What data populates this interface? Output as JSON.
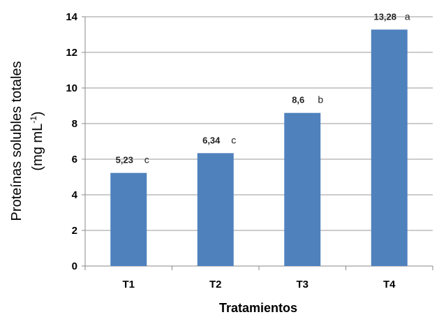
{
  "chart_data": {
    "type": "bar",
    "categories": [
      "T1",
      "T2",
      "T3",
      "T4"
    ],
    "values": [
      5.23,
      6.34,
      8.6,
      13.28
    ],
    "value_labels": [
      "5,23",
      "6,34",
      "8,6",
      "13,28"
    ],
    "letters": [
      "c",
      "c",
      "b",
      "a"
    ],
    "xlabel": "Tratamientos",
    "ylabel_line1": "Proteínas solubles totales",
    "ylabel_line2_prefix": "(mg mL",
    "ylabel_line2_sup": "-1",
    "ylabel_line2_suffix": ")",
    "ylim": [
      0,
      14
    ],
    "yticks": [
      0,
      2,
      4,
      6,
      8,
      10,
      12,
      14
    ],
    "grid": true,
    "legend": "none",
    "bar_color": "#4F81BD",
    "grid_color": "#9a9a9a"
  }
}
